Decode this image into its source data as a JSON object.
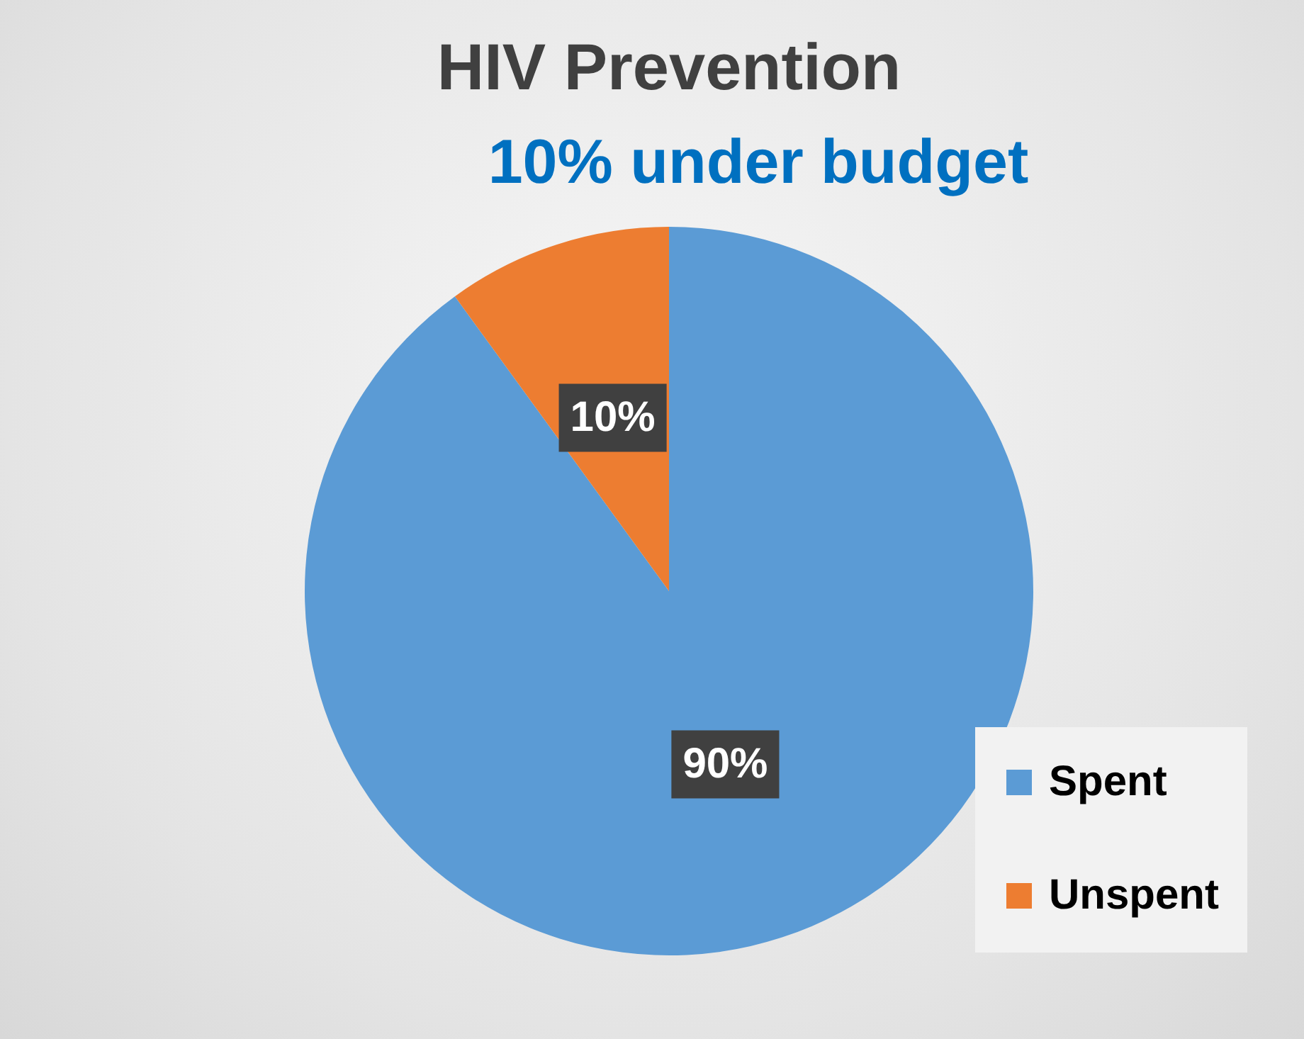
{
  "chart_data": {
    "type": "pie",
    "title": "HIV Prevention",
    "subtitle": "10% under budget",
    "categories": [
      "Spent",
      "Unspent"
    ],
    "values": [
      90,
      10
    ],
    "colors": [
      "#5b9bd5",
      "#ed7d31"
    ],
    "value_labels": [
      "90%",
      "10%"
    ],
    "legend": "bottom right"
  }
}
